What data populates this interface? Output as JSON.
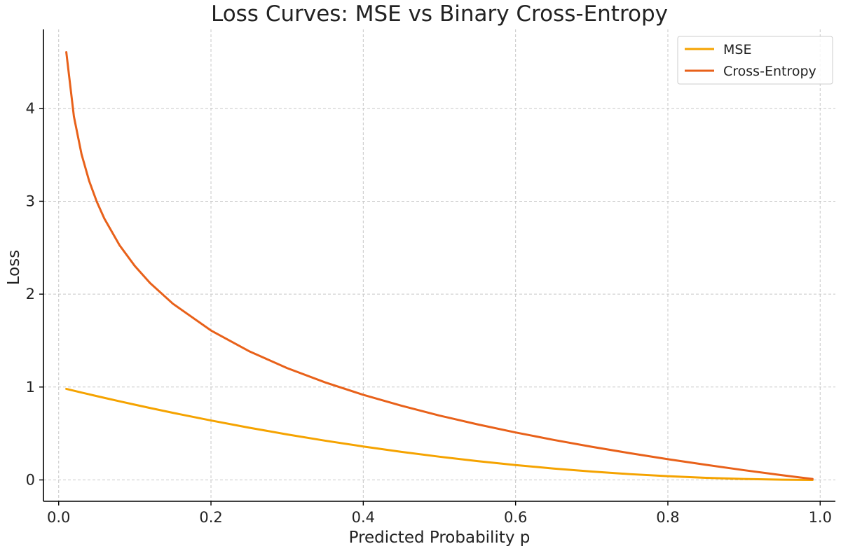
{
  "chart_data": {
    "type": "line",
    "title": "Loss Curves: MSE vs Binary Cross-Entropy",
    "xlabel": "Predicted Probability p",
    "ylabel": "Loss",
    "xlim": [
      -0.02,
      1.02
    ],
    "ylim": [
      -0.23,
      4.85
    ],
    "xticks": [
      0.0,
      0.2,
      0.4,
      0.6,
      0.8,
      1.0
    ],
    "xtick_labels": [
      "0.0",
      "0.2",
      "0.4",
      "0.6",
      "0.8",
      "1.0"
    ],
    "yticks": [
      0,
      1,
      2,
      3,
      4
    ],
    "ytick_labels": [
      "0",
      "1",
      "2",
      "3",
      "4"
    ],
    "grid": true,
    "legend_position": "top-right",
    "series": [
      {
        "name": "MSE",
        "color": "#f5a300",
        "x": [
          0.01,
          0.02,
          0.03,
          0.04,
          0.05,
          0.06,
          0.08,
          0.1,
          0.12,
          0.15,
          0.2,
          0.25,
          0.3,
          0.35,
          0.4,
          0.45,
          0.5,
          0.55,
          0.6,
          0.65,
          0.7,
          0.75,
          0.8,
          0.85,
          0.9,
          0.95,
          0.99
        ],
        "values": [
          0.9801,
          0.9604,
          0.9409,
          0.9216,
          0.9025,
          0.8836,
          0.8464,
          0.81,
          0.7744,
          0.7225,
          0.64,
          0.5625,
          0.49,
          0.4225,
          0.36,
          0.3025,
          0.25,
          0.2025,
          0.16,
          0.1225,
          0.09,
          0.0625,
          0.04,
          0.0225,
          0.01,
          0.0025,
          0.0001
        ]
      },
      {
        "name": "Cross-Entropy",
        "color": "#e8611a",
        "x": [
          0.01,
          0.02,
          0.03,
          0.04,
          0.05,
          0.06,
          0.08,
          0.1,
          0.12,
          0.15,
          0.2,
          0.25,
          0.3,
          0.35,
          0.4,
          0.45,
          0.5,
          0.55,
          0.6,
          0.65,
          0.7,
          0.75,
          0.8,
          0.85,
          0.9,
          0.95,
          0.99
        ],
        "values": [
          4.605,
          3.912,
          3.507,
          3.219,
          2.996,
          2.813,
          2.526,
          2.303,
          2.12,
          1.897,
          1.609,
          1.386,
          1.204,
          1.05,
          0.916,
          0.799,
          0.693,
          0.598,
          0.511,
          0.431,
          0.357,
          0.288,
          0.223,
          0.163,
          0.105,
          0.051,
          0.01
        ]
      }
    ]
  }
}
